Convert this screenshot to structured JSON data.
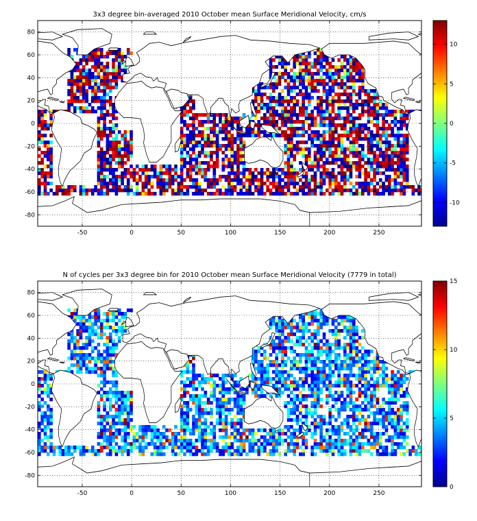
{
  "chart_data": [
    {
      "type": "heatmap",
      "title": "3x3 degree bin-averaged 2010 October mean Surface Meridional Velocity, cm/s",
      "xlabel": "",
      "ylabel": "",
      "x_ticks": [
        "-50",
        "0",
        "50",
        "100",
        "150",
        "200",
        "250"
      ],
      "y_ticks": [
        "80",
        "60",
        "40",
        "20",
        "0",
        "-20",
        "-40",
        "-60",
        "-80"
      ],
      "xlim": [
        -95,
        293
      ],
      "ylim": [
        -90,
        90
      ],
      "bin_size_deg": 3,
      "colormap": "jet",
      "clim": [
        -13,
        13
      ],
      "colorbar_ticks": [
        "10",
        "5",
        "0",
        "-5",
        "-10"
      ],
      "grid": true
    },
    {
      "type": "heatmap",
      "title": "N of cycles per 3x3 degree bin for 2010 October mean Surface Meridional Velocity (7779 in total)",
      "xlabel": "",
      "ylabel": "",
      "x_ticks": [
        "-50",
        "0",
        "50",
        "100",
        "150",
        "200",
        "250"
      ],
      "y_ticks": [
        "80",
        "60",
        "40",
        "20",
        "0",
        "-20",
        "-40",
        "-60",
        "-80"
      ],
      "xlim": [
        -95,
        293
      ],
      "ylim": [
        -90,
        90
      ],
      "bin_size_deg": 3,
      "total_cycles": 7779,
      "colormap": "jet",
      "clim": [
        0,
        15
      ],
      "colorbar_ticks": [
        "15",
        "10",
        "5",
        "0"
      ],
      "grid": true
    }
  ]
}
